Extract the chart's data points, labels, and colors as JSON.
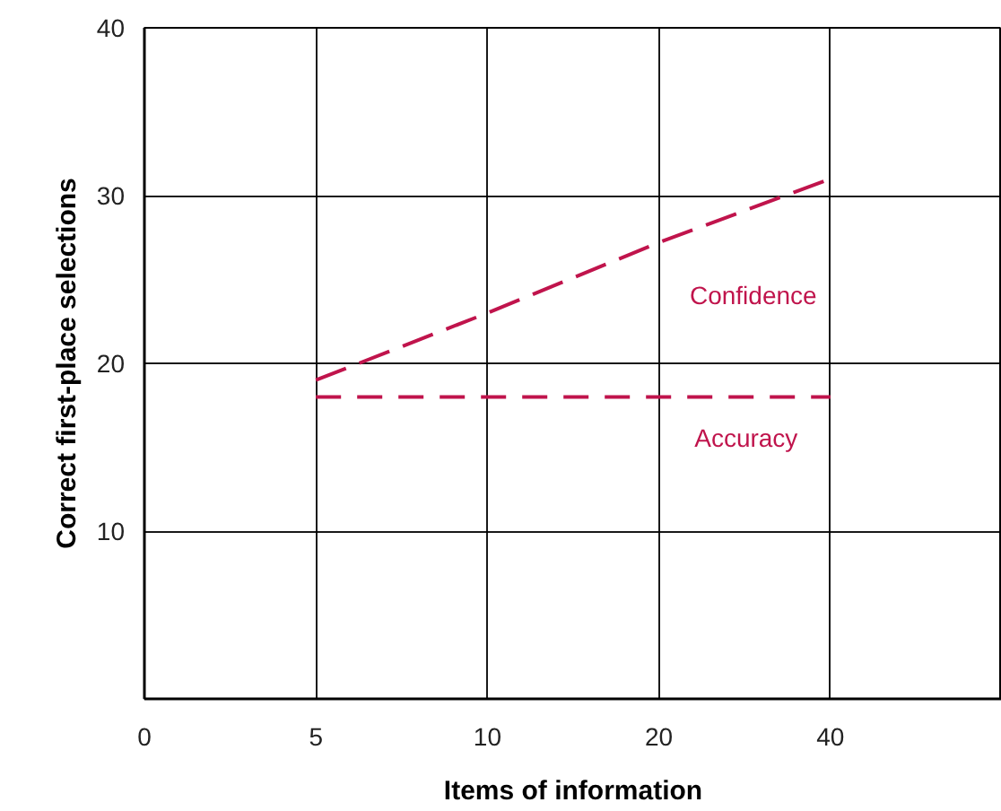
{
  "chart_data": {
    "type": "line",
    "xlabel": "Items of information",
    "ylabel": "Correct first-place selections",
    "categories": [
      "0",
      "5",
      "10",
      "20",
      "40",
      null
    ],
    "series": [
      {
        "name": "Confidence",
        "color": "#c0144c",
        "values": [
          null,
          19,
          23,
          27.2,
          31,
          null
        ],
        "line_style": "dashed"
      },
      {
        "name": "Accuracy",
        "color": "#c0144c",
        "values": [
          null,
          18,
          18,
          18,
          18,
          null
        ],
        "line_style": "dashed"
      }
    ],
    "ylim": [
      0,
      40
    ],
    "yticks": [
      10,
      20,
      30,
      40
    ],
    "grid": true,
    "marker": "none"
  }
}
